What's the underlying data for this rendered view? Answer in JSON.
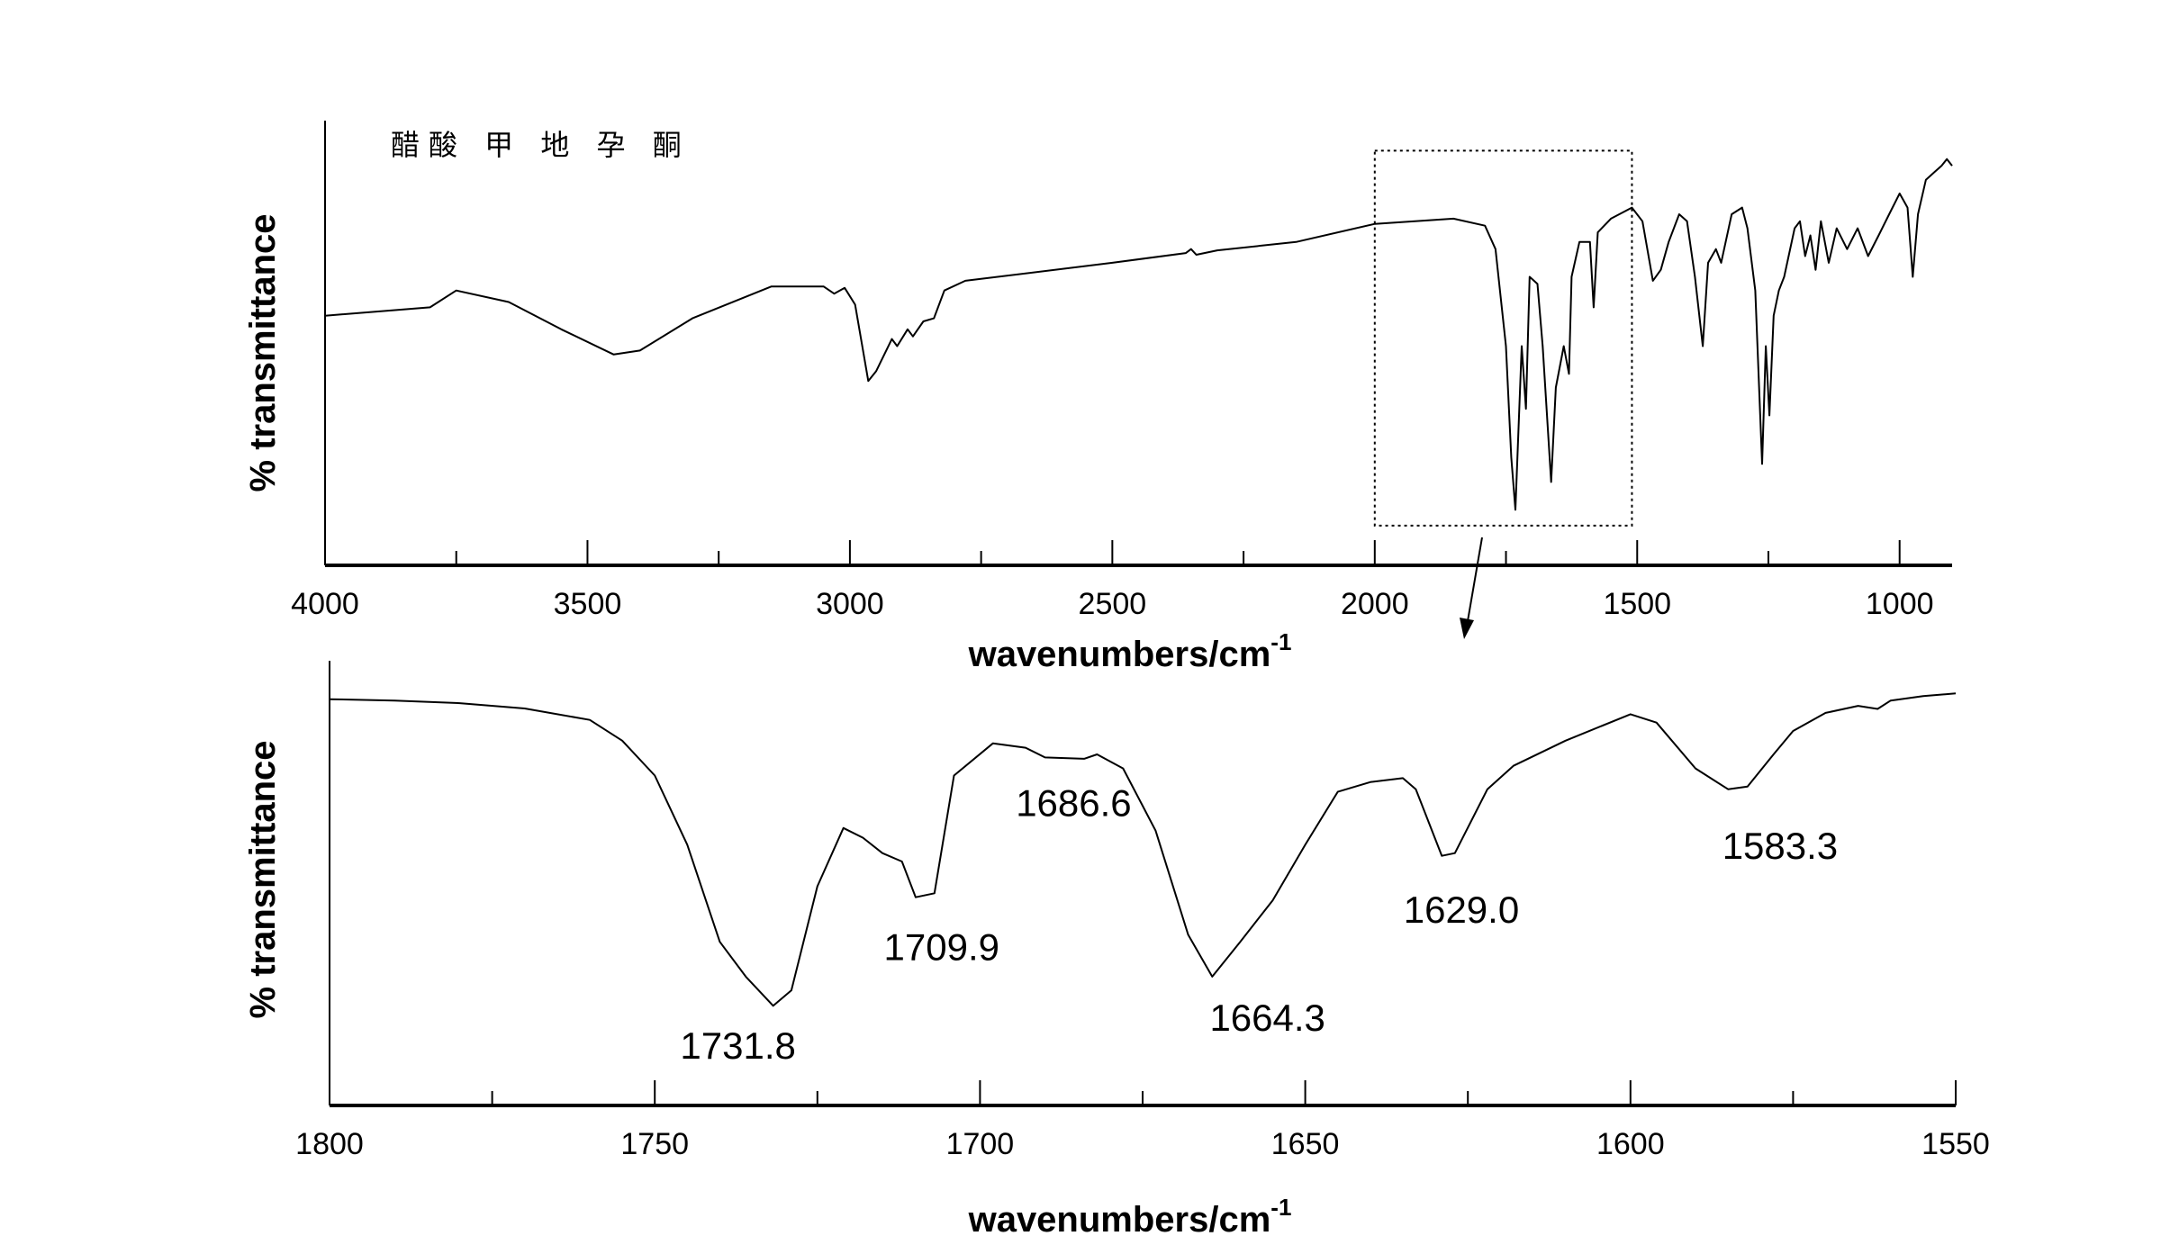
{
  "chart_data": [
    {
      "type": "line",
      "title": "醋酸 甲 地 孕 酮",
      "xlabel": "wavenumbers/cm",
      "xlabel_superscript": "-1",
      "ylabel": "% transmittance",
      "xlim": [
        4000,
        900
      ],
      "ylim": [
        0,
        100
      ],
      "xticks": [
        4000,
        3500,
        3000,
        2500,
        2000,
        1500,
        1000
      ],
      "xtick_labels": [
        "4000",
        "3500",
        "3000",
        "2500",
        "2000",
        "1500",
        "1000"
      ],
      "minor_xticks": [
        3750,
        3250,
        2750,
        2250,
        1750,
        1250
      ],
      "grid": false,
      "zoom_region": {
        "x": [
          2000,
          1510
        ],
        "y": [
          9,
          94
        ]
      },
      "x": [
        4000,
        3800,
        3750,
        3650,
        3550,
        3450,
        3400,
        3300,
        3150,
        3050,
        3030,
        3010,
        2990,
        2965,
        2950,
        2920,
        2910,
        2890,
        2880,
        2860,
        2840,
        2820,
        2780,
        2500,
        2360,
        2350,
        2340,
        2300,
        2150,
        2000,
        1850,
        1790,
        1770,
        1750,
        1740,
        1732,
        1720,
        1712,
        1705,
        1690,
        1680,
        1664,
        1655,
        1640,
        1630,
        1625,
        1610,
        1590,
        1583,
        1575,
        1550,
        1510,
        1490,
        1470,
        1455,
        1440,
        1420,
        1405,
        1390,
        1375,
        1365,
        1350,
        1340,
        1320,
        1300,
        1290,
        1275,
        1262,
        1255,
        1248,
        1240,
        1230,
        1220,
        1200,
        1190,
        1180,
        1170,
        1160,
        1150,
        1135,
        1120,
        1100,
        1080,
        1060,
        1040,
        1020,
        1000,
        985,
        975,
        965,
        950,
        935,
        920,
        910,
        900
      ],
      "y": [
        56.6,
        58.5,
        62.3,
        59.7,
        53.5,
        47.8,
        48.7,
        56.0,
        63.2,
        63.2,
        61.6,
        62.9,
        59.1,
        41.8,
        44.0,
        51.3,
        49.7,
        53.5,
        51.9,
        55.3,
        56.0,
        62.3,
        64.5,
        68.6,
        70.8,
        71.7,
        70.4,
        71.4,
        73.3,
        77.4,
        78.6,
        77.0,
        71.7,
        49.7,
        24.5,
        12.6,
        49.7,
        35.5,
        65.4,
        63.8,
        49.7,
        18.9,
        40.3,
        49.7,
        43.4,
        65.4,
        73.3,
        73.3,
        58.5,
        75.5,
        78.6,
        81.1,
        78.0,
        64.5,
        67.0,
        73.3,
        79.6,
        78.0,
        65.4,
        49.7,
        68.6,
        71.7,
        68.6,
        79.6,
        81.1,
        76.4,
        62.3,
        23.0,
        49.7,
        34.0,
        56.6,
        62.3,
        65.4,
        76.4,
        78.0,
        70.1,
        74.8,
        67.0,
        78.0,
        68.6,
        76.4,
        71.7,
        76.4,
        70.1,
        74.8,
        79.6,
        84.3,
        81.1,
        65.4,
        79.6,
        87.4,
        89.0,
        90.6,
        92.1,
        90.6
      ]
    },
    {
      "type": "line",
      "xlabel": "wavenumbers/cm",
      "xlabel_superscript": "-1",
      "ylabel": "% transmittance",
      "xlim": [
        1800,
        1550
      ],
      "ylim": [
        0,
        100
      ],
      "xticks": [
        1800,
        1750,
        1700,
        1650,
        1600,
        1550
      ],
      "xtick_labels": [
        "1800",
        "1750",
        "1700",
        "1650",
        "1600",
        "1550"
      ],
      "minor_xticks": [
        1775,
        1725,
        1675,
        1625,
        1575
      ],
      "grid": false,
      "x": [
        1800,
        1790,
        1780,
        1770,
        1760,
        1755,
        1750,
        1745,
        1740,
        1736,
        1731.8,
        1729,
        1725,
        1721,
        1718,
        1715,
        1712,
        1709.9,
        1707,
        1704,
        1698,
        1693,
        1690,
        1684,
        1682,
        1678,
        1673,
        1668,
        1664.3,
        1660,
        1655,
        1650,
        1645,
        1640,
        1635,
        1633,
        1629,
        1627,
        1622,
        1618,
        1610,
        1600,
        1596,
        1590,
        1585,
        1582,
        1578,
        1575,
        1570,
        1565,
        1562,
        1560,
        1555,
        1550
      ],
      "y": [
        92.1,
        91.8,
        91.2,
        90.0,
        87.4,
        82.7,
        74.8,
        59.1,
        37.1,
        29.2,
        22.6,
        26.1,
        49.7,
        62.9,
        60.7,
        57.2,
        55.3,
        47.2,
        48.1,
        74.8,
        82.1,
        81.1,
        78.9,
        78.6,
        79.6,
        76.4,
        62.3,
        38.7,
        29.2,
        37.1,
        46.5,
        59.1,
        71.1,
        73.3,
        74.2,
        71.7,
        56.6,
        57.2,
        71.7,
        77.0,
        82.7,
        88.7,
        86.8,
        76.4,
        71.7,
        72.3,
        79.6,
        84.9,
        89.0,
        90.6,
        89.9,
        91.8,
        92.8,
        93.4
      ],
      "annotations": [
        {
          "text": "1731.8",
          "x": 1737.2,
          "y": 12.9
        },
        {
          "text": "1709.9",
          "x": 1705.9,
          "y": 35.2
        },
        {
          "text": "1686.6",
          "x": 1685.6,
          "y": 67.9
        },
        {
          "text": "1664.3",
          "x": 1655.8,
          "y": 19.2
        },
        {
          "text": "1629.0",
          "x": 1626.0,
          "y": 43.7
        },
        {
          "text": "1583.3",
          "x": 1577.0,
          "y": 58.2
        }
      ]
    }
  ]
}
